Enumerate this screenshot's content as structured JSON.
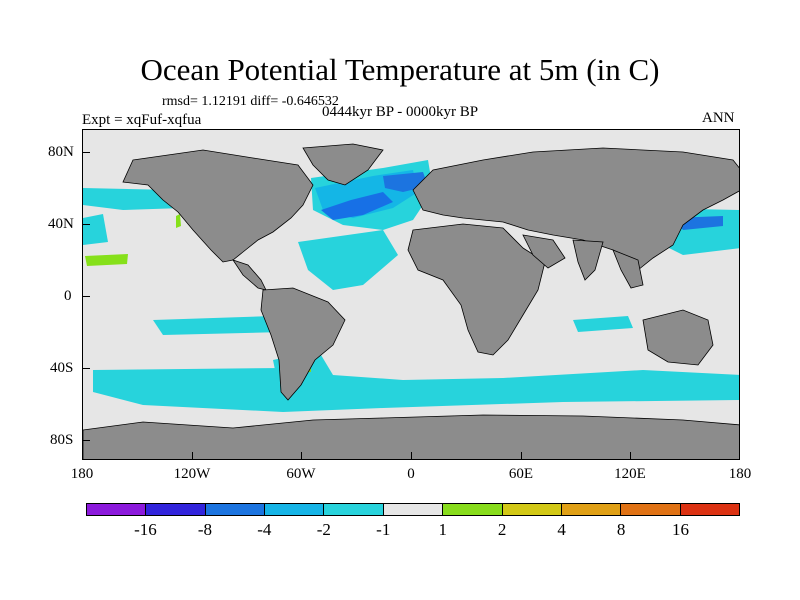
{
  "title": "Ocean Potential Temperature at 5m (in C)",
  "stats_line": "rmsd= 1.12191 diff= -0.646532",
  "experiment": "Expt = xqFuf-xqfua",
  "period": "0444kyr BP - 0000kyr BP",
  "season": "ANN",
  "map": {
    "latitude_labels": [
      "80N",
      "40N",
      "0",
      "40S",
      "80S"
    ],
    "longitude_labels": [
      "180",
      "120W",
      "60W",
      "0",
      "60E",
      "120E",
      "180"
    ],
    "colors": {
      "land": "#8c8c8c",
      "neutral": "#e6e6e6",
      "cyan": "#27d3dc",
      "lightblue": "#14b6e6",
      "blue": "#1770e6",
      "green": "#86e01a",
      "coast": "#000000"
    }
  },
  "colorbar": {
    "colors": [
      "#8c1adc",
      "#3224dc",
      "#1c74e0",
      "#16b4e6",
      "#28d3dc",
      "#e6e6e6",
      "#88dc1c",
      "#d2c816",
      "#e0a016",
      "#e07214",
      "#dc3212"
    ],
    "labels": [
      "-16",
      "-8",
      "-4",
      "-2",
      "-1",
      "1",
      "2",
      "4",
      "8",
      "16"
    ]
  }
}
